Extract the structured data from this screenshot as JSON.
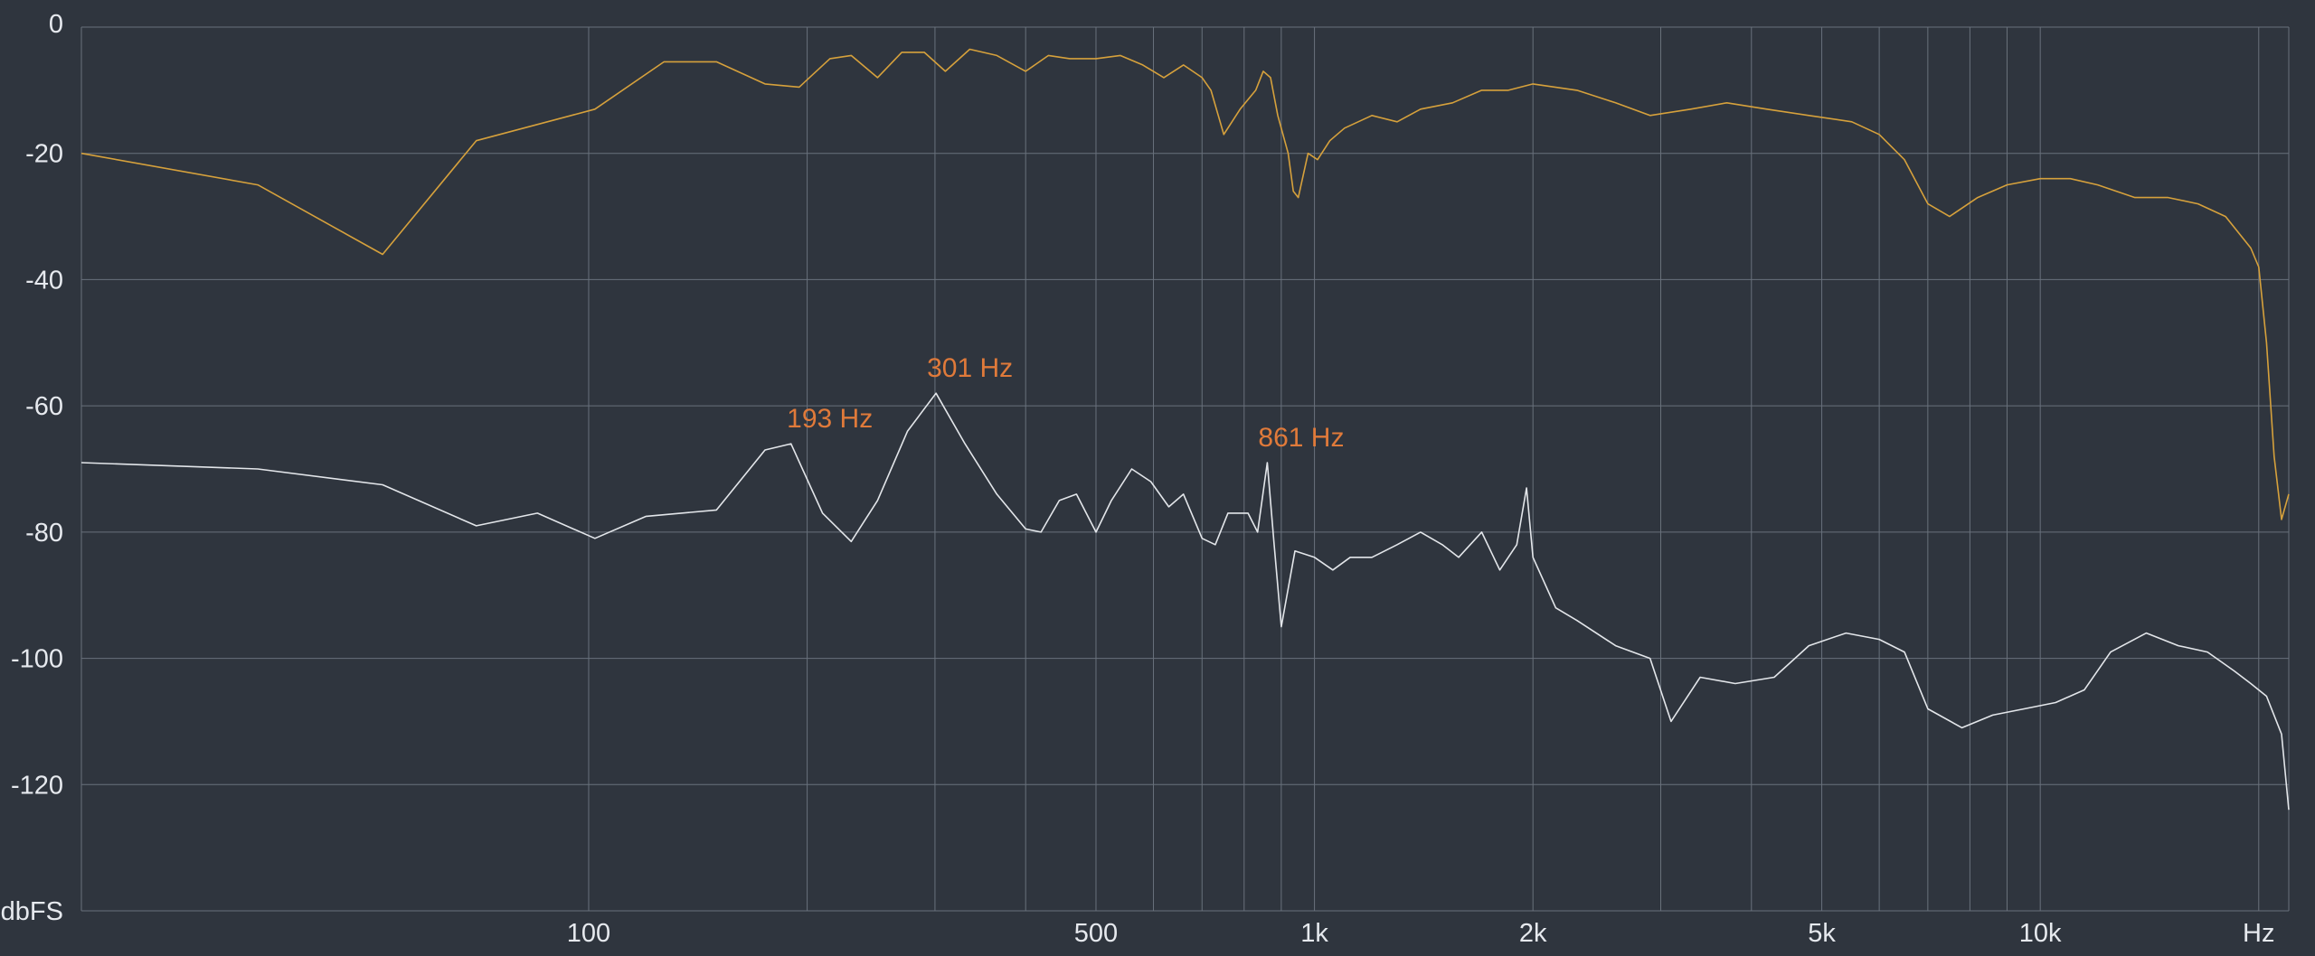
{
  "chart_data": {
    "type": "line",
    "x_scale": "log",
    "xlim": [
      20,
      22000
    ],
    "ylim": [
      -140,
      0
    ],
    "grid": true,
    "y_ticks": [
      {
        "value": 0,
        "label": "0"
      },
      {
        "value": -20,
        "label": "-20"
      },
      {
        "value": -40,
        "label": "-40"
      },
      {
        "value": -60,
        "label": "-60"
      },
      {
        "value": -80,
        "label": "-80"
      },
      {
        "value": -100,
        "label": "-100"
      },
      {
        "value": -120,
        "label": "-120"
      },
      {
        "value": -140,
        "label": "dbFS"
      }
    ],
    "x_ticks": [
      {
        "value": 100,
        "label": "100"
      },
      {
        "value": 500,
        "label": "500"
      },
      {
        "value": 1000,
        "label": "1k"
      },
      {
        "value": 2000,
        "label": "2k"
      },
      {
        "value": 5000,
        "label": "5k"
      },
      {
        "value": 10000,
        "label": "10k"
      },
      {
        "value": 20000,
        "label": "Hz"
      }
    ],
    "x_gridlines": [
      100,
      200,
      300,
      400,
      500,
      600,
      700,
      800,
      900,
      1000,
      2000,
      3000,
      4000,
      5000,
      6000,
      7000,
      8000,
      9000,
      10000,
      20000
    ],
    "series": [
      {
        "color": "#d6a13c",
        "points": [
          [
            20,
            -20
          ],
          [
            35,
            -25
          ],
          [
            52,
            -36
          ],
          [
            70,
            -18
          ],
          [
            102,
            -13
          ],
          [
            127,
            -5.5
          ],
          [
            150,
            -5.5
          ],
          [
            175,
            -9
          ],
          [
            195,
            -9.5
          ],
          [
            215,
            -5
          ],
          [
            230,
            -4.5
          ],
          [
            250,
            -8
          ],
          [
            270,
            -4
          ],
          [
            290,
            -4
          ],
          [
            310,
            -7
          ],
          [
            335,
            -3.5
          ],
          [
            365,
            -4.5
          ],
          [
            400,
            -7
          ],
          [
            430,
            -4.5
          ],
          [
            460,
            -5
          ],
          [
            500,
            -5
          ],
          [
            540,
            -4.5
          ],
          [
            580,
            -6
          ],
          [
            620,
            -8
          ],
          [
            660,
            -6
          ],
          [
            700,
            -8
          ],
          [
            720,
            -10
          ],
          [
            750,
            -17
          ],
          [
            790,
            -13
          ],
          [
            830,
            -10
          ],
          [
            850,
            -7
          ],
          [
            870,
            -8
          ],
          [
            890,
            -14
          ],
          [
            920,
            -20
          ],
          [
            935,
            -26
          ],
          [
            950,
            -27
          ],
          [
            980,
            -20
          ],
          [
            1010,
            -21
          ],
          [
            1050,
            -18
          ],
          [
            1100,
            -16
          ],
          [
            1200,
            -14
          ],
          [
            1300,
            -15
          ],
          [
            1400,
            -13
          ],
          [
            1550,
            -12
          ],
          [
            1700,
            -10
          ],
          [
            1850,
            -10
          ],
          [
            2000,
            -9
          ],
          [
            2300,
            -10
          ],
          [
            2600,
            -12
          ],
          [
            2900,
            -14
          ],
          [
            3300,
            -13
          ],
          [
            3700,
            -12
          ],
          [
            4200,
            -13
          ],
          [
            4800,
            -14
          ],
          [
            5500,
            -15
          ],
          [
            6000,
            -17
          ],
          [
            6500,
            -21
          ],
          [
            7000,
            -28
          ],
          [
            7500,
            -30
          ],
          [
            8200,
            -27
          ],
          [
            9000,
            -25
          ],
          [
            10000,
            -24
          ],
          [
            11000,
            -24
          ],
          [
            12000,
            -25
          ],
          [
            13500,
            -27
          ],
          [
            15000,
            -27
          ],
          [
            16500,
            -28
          ],
          [
            18000,
            -30
          ],
          [
            19500,
            -35
          ],
          [
            20000,
            -38
          ],
          [
            20500,
            -50
          ],
          [
            21000,
            -68
          ],
          [
            21500,
            -78
          ],
          [
            22000,
            -74
          ]
        ]
      },
      {
        "color": "#e3e6ea",
        "points": [
          [
            20,
            -69
          ],
          [
            35,
            -70
          ],
          [
            52,
            -72.5
          ],
          [
            70,
            -79
          ],
          [
            85,
            -77
          ],
          [
            102,
            -81
          ],
          [
            120,
            -77.5
          ],
          [
            150,
            -76.5
          ],
          [
            175,
            -67
          ],
          [
            190,
            -66
          ],
          [
            210,
            -77
          ],
          [
            230,
            -81.5
          ],
          [
            250,
            -75
          ],
          [
            275,
            -64
          ],
          [
            301,
            -58
          ],
          [
            330,
            -66
          ],
          [
            365,
            -74
          ],
          [
            400,
            -79.5
          ],
          [
            420,
            -80
          ],
          [
            445,
            -75
          ],
          [
            470,
            -74
          ],
          [
            500,
            -80
          ],
          [
            525,
            -75
          ],
          [
            560,
            -70
          ],
          [
            595,
            -72
          ],
          [
            630,
            -76
          ],
          [
            660,
            -74
          ],
          [
            700,
            -81
          ],
          [
            730,
            -82
          ],
          [
            760,
            -77
          ],
          [
            810,
            -77
          ],
          [
            835,
            -80
          ],
          [
            861,
            -69
          ],
          [
            880,
            -82
          ],
          [
            900,
            -95
          ],
          [
            940,
            -83
          ],
          [
            1000,
            -84
          ],
          [
            1060,
            -86
          ],
          [
            1120,
            -84
          ],
          [
            1200,
            -84
          ],
          [
            1300,
            -82
          ],
          [
            1400,
            -80
          ],
          [
            1500,
            -82
          ],
          [
            1580,
            -84
          ],
          [
            1700,
            -80
          ],
          [
            1800,
            -86
          ],
          [
            1900,
            -82
          ],
          [
            1960,
            -73
          ],
          [
            2000,
            -84
          ],
          [
            2150,
            -92
          ],
          [
            2300,
            -94
          ],
          [
            2600,
            -98
          ],
          [
            2900,
            -100
          ],
          [
            3100,
            -110
          ],
          [
            3400,
            -103
          ],
          [
            3800,
            -104
          ],
          [
            4300,
            -103
          ],
          [
            4800,
            -98
          ],
          [
            5400,
            -96
          ],
          [
            6000,
            -97
          ],
          [
            6500,
            -99
          ],
          [
            7000,
            -108
          ],
          [
            7800,
            -111
          ],
          [
            8600,
            -109
          ],
          [
            9500,
            -108
          ],
          [
            10500,
            -107
          ],
          [
            11500,
            -105
          ],
          [
            12500,
            -99
          ],
          [
            14000,
            -96
          ],
          [
            15500,
            -98
          ],
          [
            17000,
            -99
          ],
          [
            18500,
            -102
          ],
          [
            19500,
            -104
          ],
          [
            20500,
            -106
          ],
          [
            21500,
            -112
          ],
          [
            22000,
            -124
          ]
        ]
      }
    ],
    "annotations": [
      {
        "text": "193 Hz",
        "x": 193,
        "y": -66
      },
      {
        "text": "301 Hz",
        "x": 301,
        "y": -58
      },
      {
        "text": "861 Hz",
        "x": 861,
        "y": -69
      }
    ]
  }
}
